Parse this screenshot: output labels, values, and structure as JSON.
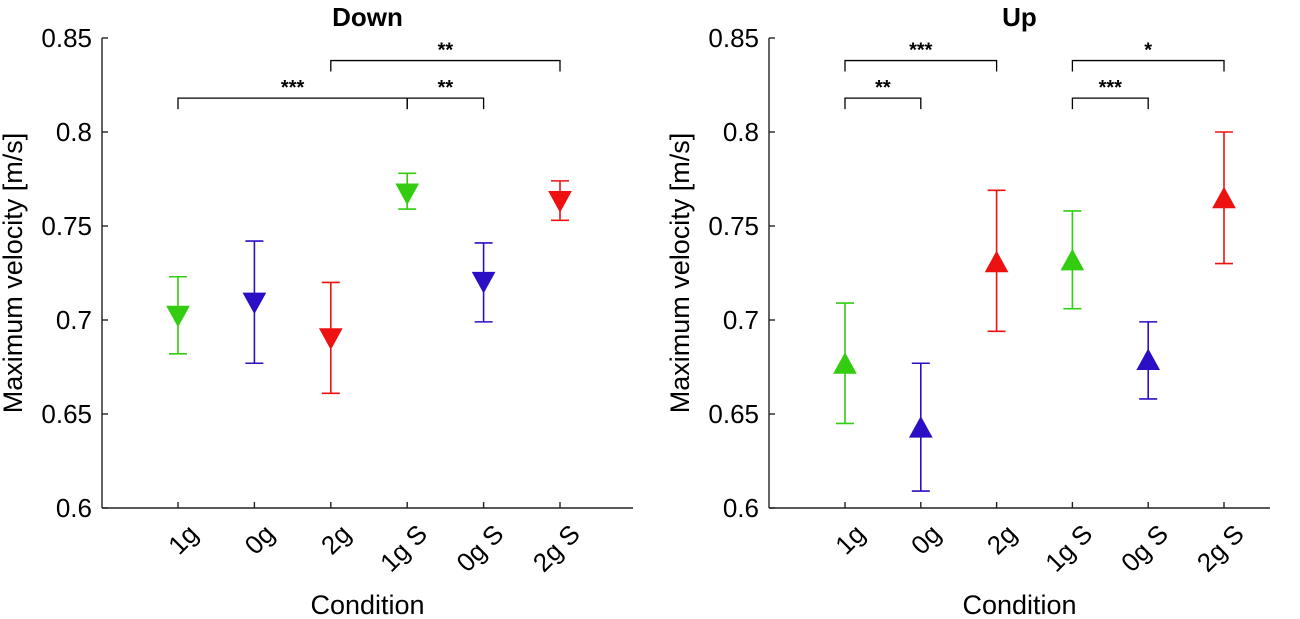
{
  "chart_data": [
    {
      "type": "scatter",
      "title": "Down",
      "xlabel": "Condition",
      "ylabel": "Maximum velocity [m/s]",
      "ylim": [
        0.6,
        0.85
      ],
      "yticks": [
        0.6,
        0.65,
        0.7,
        0.75,
        0.8,
        0.85
      ],
      "ytick_labels": [
        "0.6",
        "0.65",
        "0.7",
        "0.75",
        "0.8",
        "0.85"
      ],
      "categories": [
        "1g",
        "0g",
        "2g",
        "1g S",
        "0g S",
        "2g S"
      ],
      "marker": "triangle-down",
      "colors": [
        "#33cc11",
        "#2a0fc4",
        "#ee1111",
        "#33cc11",
        "#2a0fc4",
        "#ee1111"
      ],
      "values": [
        0.702,
        0.709,
        0.69,
        0.767,
        0.72,
        0.763
      ],
      "err_low": [
        0.682,
        0.677,
        0.661,
        0.759,
        0.699,
        0.753
      ],
      "err_high": [
        0.723,
        0.742,
        0.72,
        0.778,
        0.741,
        0.774
      ],
      "significance": [
        {
          "from": 0,
          "to": 3,
          "y": 0.818,
          "label": "***"
        },
        {
          "from": 3,
          "to": 4,
          "y": 0.818,
          "label": "**"
        },
        {
          "from": 2,
          "to": 5,
          "y": 0.838,
          "label": "**"
        }
      ]
    },
    {
      "type": "scatter",
      "title": "Up",
      "xlabel": "Condition",
      "ylabel": "Maximum velocity [m/s]",
      "ylim": [
        0.6,
        0.85
      ],
      "yticks": [
        0.6,
        0.65,
        0.7,
        0.75,
        0.8,
        0.85
      ],
      "ytick_labels": [
        "0.6",
        "0.65",
        "0.7",
        "0.75",
        "0.8",
        "0.85"
      ],
      "categories": [
        "1g",
        "0g",
        "2g",
        "1g S",
        "0g S",
        "2g S"
      ],
      "marker": "triangle-up",
      "colors": [
        "#33cc11",
        "#2a0fc4",
        "#ee1111",
        "#33cc11",
        "#2a0fc4",
        "#ee1111"
      ],
      "values": [
        0.677,
        0.643,
        0.731,
        0.732,
        0.679,
        0.765
      ],
      "err_low": [
        0.645,
        0.609,
        0.694,
        0.706,
        0.658,
        0.73
      ],
      "err_high": [
        0.709,
        0.677,
        0.769,
        0.758,
        0.699,
        0.8
      ],
      "significance": [
        {
          "from": 0,
          "to": 1,
          "y": 0.818,
          "label": "**"
        },
        {
          "from": 3,
          "to": 4,
          "y": 0.818,
          "label": "***"
        },
        {
          "from": 0,
          "to": 2,
          "y": 0.838,
          "label": "***"
        },
        {
          "from": 3,
          "to": 5,
          "y": 0.838,
          "label": "*"
        }
      ]
    }
  ]
}
